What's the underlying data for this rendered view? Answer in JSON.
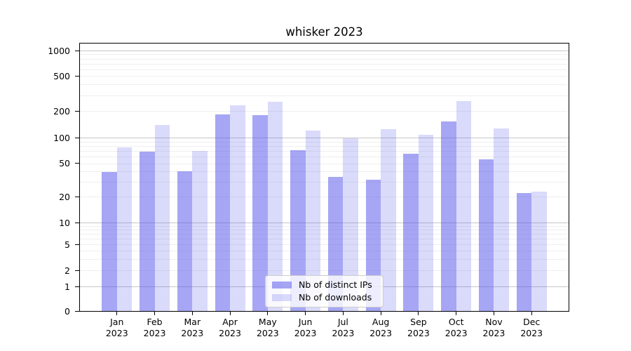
{
  "title": "whisker 2023",
  "chart_data": {
    "type": "bar",
    "title": "whisker 2023",
    "x_tick_months": [
      "Jan",
      "Feb",
      "Mar",
      "Apr",
      "May",
      "Jun",
      "Jul",
      "Aug",
      "Sep",
      "Oct",
      "Nov",
      "Dec"
    ],
    "x_tick_year": "2023",
    "series": [
      {
        "name": "Nb of distinct IPs",
        "color": "rgba(85,85,235,0.52)",
        "values": [
          39,
          69,
          40,
          182,
          180,
          71,
          34,
          32,
          65,
          152,
          55,
          22
        ]
      },
      {
        "name": "Nb of downloads",
        "color": "rgba(85,85,235,0.22)",
        "values": [
          76,
          140,
          70,
          232,
          254,
          120,
          99,
          124,
          107,
          258,
          127,
          23
        ]
      }
    ],
    "y_scale": "symlog",
    "y_ticks": [
      0,
      1,
      2,
      5,
      10,
      20,
      50,
      100,
      200,
      500,
      1000
    ],
    "ylim": [
      0,
      1200
    ],
    "grid": "major+minor",
    "legend_position": "lower-center",
    "colors": {
      "grid_major": "#c6c6c6",
      "grid_minor": "#efefef",
      "axis": "#000000",
      "text": "#000000"
    }
  }
}
